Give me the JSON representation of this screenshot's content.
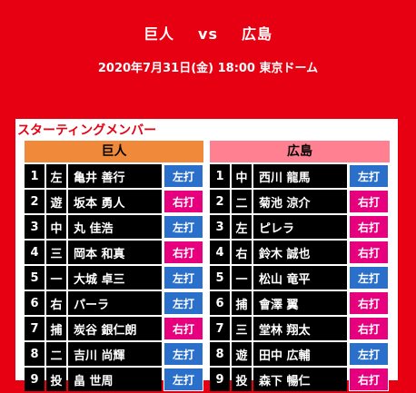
{
  "header": {
    "home_team": "巨人",
    "vs": "vs",
    "away_team": "広島",
    "date_line": "2020年7月31日(金) 18:00 東京ドーム"
  },
  "panel": {
    "title": "スターティングメンバー",
    "colors": {
      "left_head": "#f08a3a",
      "right_head": "#ff8090",
      "left_bat": "#2a6fc9",
      "right_bat": "#e6007e"
    }
  },
  "left": {
    "team": "巨人",
    "players": [
      {
        "order": "1",
        "pos": "左",
        "name": "亀井 善行",
        "bat": "左打",
        "side": "L"
      },
      {
        "order": "2",
        "pos": "遊",
        "name": "坂本 勇人",
        "bat": "右打",
        "side": "R"
      },
      {
        "order": "3",
        "pos": "中",
        "name": "丸 佳浩",
        "bat": "左打",
        "side": "L"
      },
      {
        "order": "4",
        "pos": "三",
        "name": "岡本 和真",
        "bat": "右打",
        "side": "R"
      },
      {
        "order": "5",
        "pos": "一",
        "name": "大城 卓三",
        "bat": "左打",
        "side": "L"
      },
      {
        "order": "6",
        "pos": "右",
        "name": "パーラ",
        "bat": "左打",
        "side": "L"
      },
      {
        "order": "7",
        "pos": "捕",
        "name": "炭谷 銀仁朗",
        "bat": "右打",
        "side": "R"
      },
      {
        "order": "8",
        "pos": "二",
        "name": "吉川 尚輝",
        "bat": "左打",
        "side": "L"
      },
      {
        "order": "9",
        "pos": "投",
        "name": "畠 世周",
        "bat": "左打",
        "side": "L"
      }
    ]
  },
  "right": {
    "team": "広島",
    "players": [
      {
        "order": "1",
        "pos": "中",
        "name": "西川 龍馬",
        "bat": "左打",
        "side": "L"
      },
      {
        "order": "2",
        "pos": "二",
        "name": "菊池 涼介",
        "bat": "右打",
        "side": "R"
      },
      {
        "order": "3",
        "pos": "左",
        "name": "ピレラ",
        "bat": "右打",
        "side": "R"
      },
      {
        "order": "4",
        "pos": "右",
        "name": "鈴木 誠也",
        "bat": "右打",
        "side": "R"
      },
      {
        "order": "5",
        "pos": "一",
        "name": "松山 竜平",
        "bat": "左打",
        "side": "L"
      },
      {
        "order": "6",
        "pos": "捕",
        "name": "會澤 翼",
        "bat": "右打",
        "side": "R"
      },
      {
        "order": "7",
        "pos": "三",
        "name": "堂林 翔太",
        "bat": "右打",
        "side": "R"
      },
      {
        "order": "8",
        "pos": "遊",
        "name": "田中 広輔",
        "bat": "左打",
        "side": "L"
      },
      {
        "order": "9",
        "pos": "投",
        "name": "森下 暢仁",
        "bat": "右打",
        "side": "R"
      }
    ]
  }
}
